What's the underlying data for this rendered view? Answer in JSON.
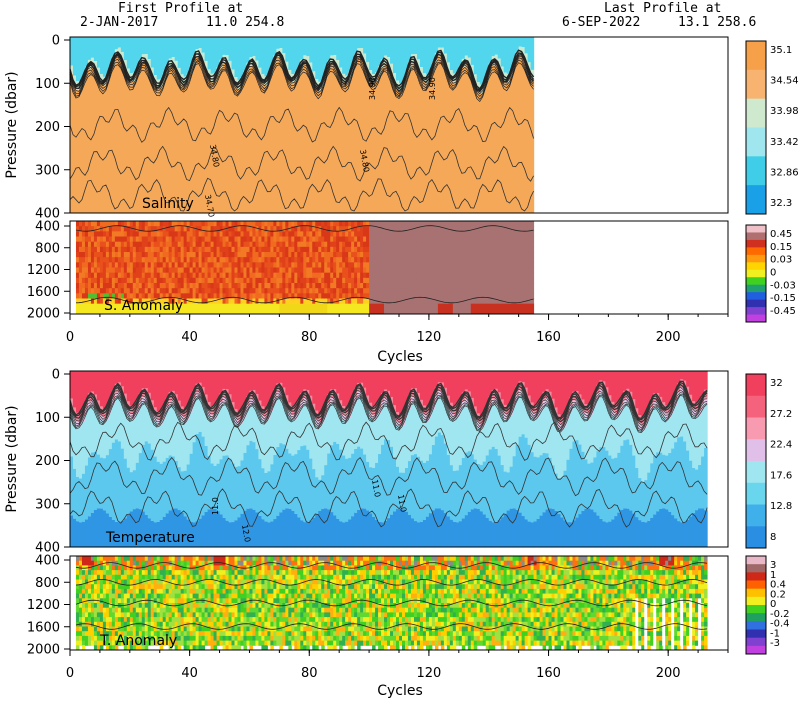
{
  "header": {
    "first_title": "First Profile at",
    "first_date": "2-JAN-2017",
    "first_pos": "11.0  254.8",
    "last_title": "Last Profile at",
    "last_date": "6-SEP-2022",
    "last_pos": "13.1  258.6"
  },
  "chart_data": [
    {
      "type": "heatmap",
      "inner_label": "Salinity",
      "ylabel": "Pressure (dbar)",
      "y_ticks": [
        "0",
        "100",
        "200",
        "300",
        "400"
      ],
      "ylim": [
        400,
        0
      ],
      "x_ticks": [
        "0",
        "40",
        "80",
        "120",
        "160",
        "200"
      ],
      "xlim": [
        0,
        220
      ],
      "data_extent_cycles": [
        0,
        155
      ],
      "colorbar": {
        "labels": [
          "35.1",
          "34.54",
          "33.98",
          "33.42",
          "32.86",
          "32.3"
        ],
        "colors": [
          "#f6a14a",
          "#f8b370",
          "#cfe9cf",
          "#9fe6ef",
          "#3fcde8",
          "#1aa0e6"
        ]
      },
      "contour_labels": [
        "34.90",
        "34.80",
        "34.70",
        "34.80",
        "34.90"
      ]
    },
    {
      "type": "heatmap",
      "inner_label": "S. Anomaly",
      "y_ticks": [
        "400",
        "800",
        "1200",
        "1600",
        "2000"
      ],
      "ylim": [
        2000,
        400
      ],
      "x_ticks": [
        "0",
        "40",
        "80",
        "120",
        "160",
        "200"
      ],
      "xlim": [
        0,
        220
      ],
      "xlabel": "Cycles",
      "data_extent_cycles": [
        0,
        155
      ],
      "colorbar": {
        "labels": [
          "0.45",
          "0.15",
          "0.03",
          "0",
          "-0.03",
          "-0.15",
          "-0.45"
        ],
        "colors": [
          "#f0c0c8",
          "#b07070",
          "#d03020",
          "#ff6a00",
          "#ff9a10",
          "#ffd400",
          "#f0f020",
          "#40d020",
          "#20a070",
          "#2060e0",
          "#3030b0",
          "#8040d0",
          "#c040e0"
        ]
      }
    },
    {
      "type": "heatmap",
      "inner_label": "Temperature",
      "ylabel": "Pressure (dbar)",
      "y_ticks": [
        "0",
        "100",
        "200",
        "300",
        "400"
      ],
      "ylim": [
        400,
        0
      ],
      "x_ticks": [
        "0",
        "40",
        "80",
        "120",
        "160",
        "200"
      ],
      "xlim": [
        0,
        220
      ],
      "data_extent_cycles": [
        0,
        213
      ],
      "colorbar": {
        "labels": [
          "32",
          "27.2",
          "22.4",
          "17.6",
          "12.8",
          "8"
        ],
        "colors": [
          "#f0405e",
          "#f5627c",
          "#f89ab0",
          "#e0c0e8",
          "#a0e6f0",
          "#6ad6ee",
          "#40b0ea",
          "#2a8fe2"
        ]
      },
      "contour_labels": [
        "11.0",
        "12.0",
        "11.0",
        "11.0"
      ]
    },
    {
      "type": "heatmap",
      "inner_label": "T. Anomaly",
      "y_ticks": [
        "400",
        "800",
        "1200",
        "1600",
        "2000"
      ],
      "ylim": [
        2000,
        400
      ],
      "x_ticks": [
        "0",
        "40",
        "80",
        "120",
        "160",
        "200"
      ],
      "xlim": [
        0,
        220
      ],
      "xlabel": "Cycles",
      "data_extent_cycles": [
        0,
        213
      ],
      "colorbar": {
        "labels": [
          "3",
          "1",
          "0.4",
          "0.2",
          "0",
          "-0.2",
          "-0.4",
          "-1",
          "-3"
        ],
        "colors": [
          "#e8b8c8",
          "#a06868",
          "#d02818",
          "#ff6000",
          "#ffc000",
          "#f0f020",
          "#40d020",
          "#20a060",
          "#3070e0",
          "#3030b0",
          "#8040d0",
          "#c040e0"
        ]
      }
    }
  ]
}
